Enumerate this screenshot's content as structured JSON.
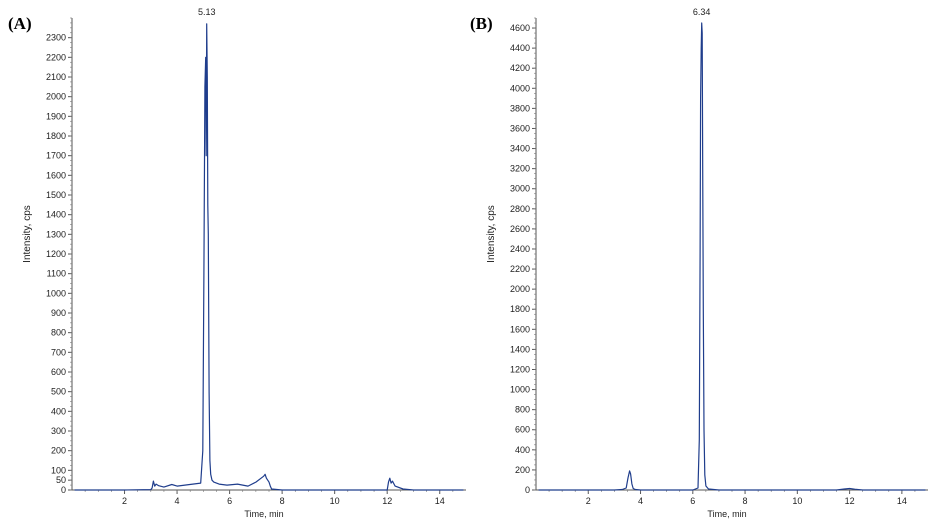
{
  "panels": [
    {
      "label": "(A)",
      "ylabel": "Intensity, cps",
      "xlabel": "Time, min",
      "peak_label": "5.13",
      "color": "#1f3d8c"
    },
    {
      "label": "(B)",
      "ylabel": "Intensity, cps",
      "xlabel": "Time, min",
      "peak_label": "6.34",
      "color": "#1f3d8c"
    }
  ],
  "chart_data": [
    {
      "type": "line",
      "title": "",
      "xlabel": "Time, min",
      "ylabel": "Intensity, cps",
      "xlim": [
        0,
        15
      ],
      "ylim": [
        0,
        2400
      ],
      "xticks": [
        2,
        4,
        6,
        8,
        10,
        12,
        14
      ],
      "yticks": [
        0,
        50,
        100,
        200,
        300,
        400,
        500,
        600,
        700,
        800,
        900,
        1000,
        1100,
        1200,
        1300,
        1400,
        1500,
        1600,
        1700,
        1800,
        1900,
        2000,
        2100,
        2200,
        2300
      ],
      "annotations": [
        {
          "text": "5.13",
          "x": 5.13,
          "y": 2370
        }
      ],
      "series": [
        {
          "x": [
            0.1,
            1.0,
            2.0,
            3.0,
            3.05,
            3.1,
            3.15,
            3.2,
            3.3,
            3.5,
            3.8,
            4.0,
            4.3,
            4.6,
            4.9,
            4.98,
            5.02,
            5.06,
            5.09,
            5.11,
            5.13,
            5.15,
            5.17,
            5.19,
            5.22,
            5.25,
            5.28,
            5.33,
            5.4,
            5.6,
            5.9,
            6.3,
            6.7,
            7.0,
            7.3,
            7.35,
            7.4,
            7.5,
            7.55,
            7.6,
            8.0,
            10.0,
            12.0,
            12.05,
            12.1,
            12.15,
            12.2,
            12.3,
            12.6,
            13.0,
            14.0,
            14.9
          ],
          "values": [
            0,
            0,
            0,
            2,
            10,
            45,
            20,
            30,
            22,
            15,
            28,
            20,
            25,
            30,
            35,
            200,
            1100,
            2050,
            2200,
            1700,
            2370,
            2100,
            1450,
            1300,
            500,
            150,
            80,
            50,
            40,
            30,
            25,
            30,
            20,
            40,
            70,
            80,
            60,
            40,
            20,
            5,
            0,
            0,
            0,
            40,
            60,
            35,
            45,
            20,
            5,
            0,
            0,
            0
          ]
        }
      ]
    },
    {
      "type": "line",
      "title": "",
      "xlabel": "Time, min",
      "ylabel": "Intensity, cps",
      "xlim": [
        0,
        15
      ],
      "ylim": [
        0,
        4700
      ],
      "xticks": [
        2,
        4,
        6,
        8,
        10,
        12,
        14
      ],
      "yticks": [
        0,
        200,
        400,
        600,
        800,
        1000,
        1200,
        1400,
        1600,
        1800,
        2000,
        2200,
        2400,
        2600,
        2800,
        3000,
        3200,
        3400,
        3600,
        3800,
        4000,
        4200,
        4400,
        4600
      ],
      "annotations": [
        {
          "text": "6.34",
          "x": 6.34,
          "y": 4650
        }
      ],
      "series": [
        {
          "x": [
            0.1,
            2.0,
            3.0,
            3.3,
            3.45,
            3.52,
            3.58,
            3.62,
            3.67,
            3.72,
            3.8,
            4.0,
            5.0,
            6.0,
            6.2,
            6.25,
            6.28,
            6.3,
            6.32,
            6.34,
            6.36,
            6.38,
            6.4,
            6.43,
            6.46,
            6.5,
            6.6,
            7.0,
            8.0,
            10.0,
            11.5,
            11.8,
            12.0,
            12.2,
            12.5,
            14.0,
            14.9
          ],
          "values": [
            0,
            0,
            0,
            5,
            20,
            120,
            190,
            160,
            60,
            15,
            5,
            0,
            0,
            0,
            20,
            500,
            2350,
            3900,
            4400,
            4650,
            4550,
            3200,
            1800,
            600,
            150,
            40,
            10,
            0,
            0,
            0,
            0,
            10,
            15,
            8,
            0,
            0,
            0
          ]
        }
      ]
    }
  ]
}
